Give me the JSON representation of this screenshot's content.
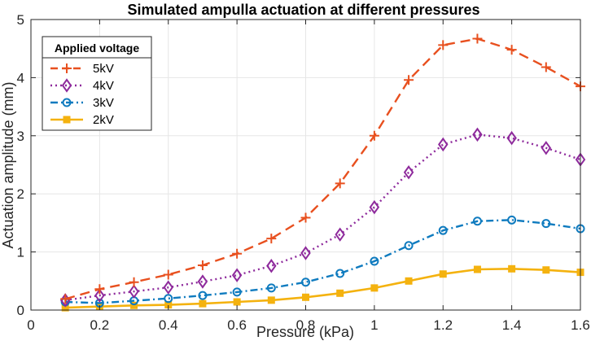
{
  "chart_data": {
    "type": "line",
    "title": "Simulated ampulla actuation at different pressures",
    "xlabel": "Pressure (kPa)",
    "ylabel": "Actuation amplitude (mm)",
    "xlim": [
      0,
      1.6
    ],
    "ylim": [
      0,
      5
    ],
    "xticks": [
      0,
      0.2,
      0.4,
      0.6,
      0.8,
      1,
      1.2,
      1.4,
      1.6
    ],
    "xtick_labels": [
      "0",
      "0.2",
      "0.4",
      "0.6",
      "0.8",
      "1",
      "1.2",
      "1.4",
      "1.6"
    ],
    "yticks": [
      0,
      1,
      2,
      3,
      4,
      5
    ],
    "ytick_labels": [
      "0",
      "1",
      "2",
      "3",
      "4",
      "5"
    ],
    "grid": true,
    "legend": {
      "title": "Applied voltage",
      "location": "top-left"
    },
    "x": [
      0.1,
      0.2,
      0.3,
      0.4,
      0.5,
      0.6,
      0.7,
      0.8,
      0.9,
      1.0,
      1.1,
      1.2,
      1.3,
      1.4,
      1.5,
      1.6
    ],
    "series": [
      {
        "name": "5kV",
        "color": "#e8501f",
        "marker": "plus",
        "line_style": "dashed",
        "values": [
          0.19,
          0.36,
          0.48,
          0.61,
          0.77,
          0.97,
          1.23,
          1.59,
          2.18,
          3.0,
          3.96,
          4.56,
          4.67,
          4.48,
          4.18,
          3.85
        ]
      },
      {
        "name": "4kV",
        "color": "#8e2a9c",
        "marker": "diamond",
        "line_style": "dotted",
        "values": [
          0.17,
          0.25,
          0.32,
          0.39,
          0.49,
          0.6,
          0.76,
          0.98,
          1.3,
          1.77,
          2.37,
          2.85,
          3.02,
          2.96,
          2.79,
          2.59
        ]
      },
      {
        "name": "3kV",
        "color": "#0f7bbf",
        "marker": "circle",
        "line_style": "dashdot",
        "values": [
          0.14,
          0.12,
          0.16,
          0.2,
          0.25,
          0.31,
          0.38,
          0.48,
          0.63,
          0.84,
          1.11,
          1.37,
          1.53,
          1.55,
          1.49,
          1.4
        ]
      },
      {
        "name": "2kV",
        "color": "#f4b20f",
        "marker": "square",
        "line_style": "solid",
        "values": [
          0.04,
          0.06,
          0.08,
          0.09,
          0.11,
          0.14,
          0.17,
          0.22,
          0.29,
          0.38,
          0.5,
          0.62,
          0.7,
          0.71,
          0.69,
          0.65
        ]
      }
    ]
  }
}
